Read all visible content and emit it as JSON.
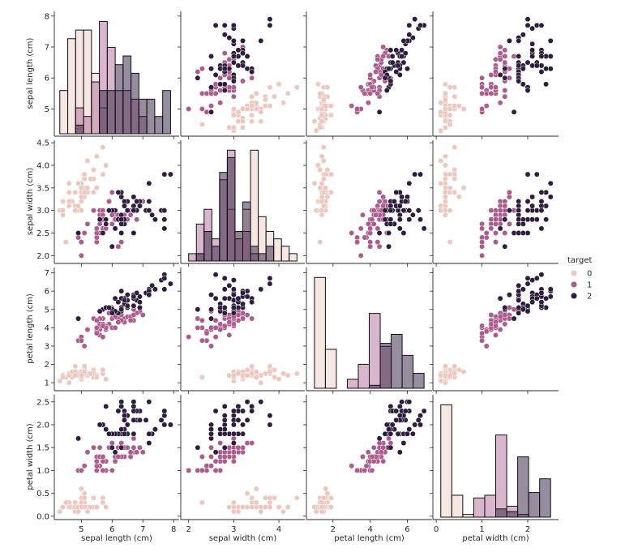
{
  "chart_data": {
    "type": "scatter",
    "subtype": "pairplot",
    "variables": [
      "sepal length (cm)",
      "sepal width (cm)",
      "petal length (cm)",
      "petal width (cm)"
    ],
    "hue": "target",
    "legend": {
      "title": "target",
      "entries": [
        "0",
        "1",
        "2"
      ],
      "placement": "right"
    },
    "palette": {
      "0": "#ebc9c0",
      "1": "#ab5d8e",
      "2": "#2d1e3e"
    },
    "axes": [
      {
        "name": "sepal length (cm)",
        "lim": [
          4.2,
          8.1
        ],
        "ticks": [
          5,
          6,
          7,
          8
        ],
        "ylim_ticks": [
          5,
          6,
          7,
          8
        ]
      },
      {
        "name": "sepal width (cm)",
        "lim": [
          1.88,
          4.52
        ],
        "ticks": [
          2,
          3,
          4
        ],
        "ylim_ticks": [
          2.0,
          2.5,
          3.0,
          3.5,
          4.0,
          4.5
        ]
      },
      {
        "name": "petal length (cm)",
        "lim": [
          0.7,
          7.2
        ],
        "ticks": [
          2,
          4,
          6
        ],
        "ylim_ticks": [
          1,
          2,
          3,
          4,
          5,
          6,
          7
        ]
      },
      {
        "name": "petal width (cm)",
        "lim": [
          -0.02,
          2.62
        ],
        "ticks": [
          0,
          1,
          2
        ],
        "ylim_ticks": [
          0.0,
          0.5,
          1.0,
          1.5,
          2.0,
          2.5
        ]
      }
    ],
    "diagonal": "histogram",
    "data": {
      "0": [
        [
          5.1,
          3.5,
          1.4,
          0.2
        ],
        [
          4.9,
          3.0,
          1.4,
          0.2
        ],
        [
          4.7,
          3.2,
          1.3,
          0.2
        ],
        [
          4.6,
          3.1,
          1.5,
          0.2
        ],
        [
          5.0,
          3.6,
          1.4,
          0.2
        ],
        [
          5.4,
          3.9,
          1.7,
          0.4
        ],
        [
          4.6,
          3.4,
          1.4,
          0.3
        ],
        [
          5.0,
          3.4,
          1.5,
          0.2
        ],
        [
          4.4,
          2.9,
          1.4,
          0.2
        ],
        [
          4.9,
          3.1,
          1.5,
          0.1
        ],
        [
          5.4,
          3.7,
          1.5,
          0.2
        ],
        [
          4.8,
          3.4,
          1.6,
          0.2
        ],
        [
          4.8,
          3.0,
          1.4,
          0.1
        ],
        [
          4.3,
          3.0,
          1.1,
          0.1
        ],
        [
          5.8,
          4.0,
          1.2,
          0.2
        ],
        [
          5.7,
          4.4,
          1.5,
          0.4
        ],
        [
          5.4,
          3.9,
          1.3,
          0.4
        ],
        [
          5.1,
          3.5,
          1.4,
          0.3
        ],
        [
          5.7,
          3.8,
          1.7,
          0.3
        ],
        [
          5.1,
          3.8,
          1.5,
          0.3
        ],
        [
          5.4,
          3.4,
          1.7,
          0.2
        ],
        [
          5.1,
          3.7,
          1.5,
          0.4
        ],
        [
          4.6,
          3.6,
          1.0,
          0.2
        ],
        [
          5.1,
          3.3,
          1.7,
          0.5
        ],
        [
          4.8,
          3.4,
          1.9,
          0.2
        ],
        [
          5.0,
          3.0,
          1.6,
          0.2
        ],
        [
          5.0,
          3.4,
          1.6,
          0.4
        ],
        [
          5.2,
          3.5,
          1.5,
          0.2
        ],
        [
          5.2,
          3.4,
          1.4,
          0.2
        ],
        [
          4.7,
          3.2,
          1.6,
          0.2
        ],
        [
          4.8,
          3.1,
          1.6,
          0.2
        ],
        [
          5.4,
          3.4,
          1.5,
          0.4
        ],
        [
          5.2,
          4.1,
          1.5,
          0.1
        ],
        [
          5.5,
          4.2,
          1.4,
          0.2
        ],
        [
          4.9,
          3.1,
          1.5,
          0.2
        ],
        [
          5.0,
          3.2,
          1.2,
          0.2
        ],
        [
          5.5,
          3.5,
          1.3,
          0.2
        ],
        [
          4.9,
          3.6,
          1.4,
          0.1
        ],
        [
          4.4,
          3.0,
          1.3,
          0.2
        ],
        [
          5.1,
          3.4,
          1.5,
          0.2
        ],
        [
          5.0,
          3.5,
          1.3,
          0.3
        ],
        [
          4.5,
          2.3,
          1.3,
          0.3
        ],
        [
          4.4,
          3.2,
          1.3,
          0.2
        ],
        [
          5.0,
          3.5,
          1.6,
          0.6
        ],
        [
          5.1,
          3.8,
          1.9,
          0.4
        ],
        [
          4.8,
          3.0,
          1.4,
          0.3
        ],
        [
          5.1,
          3.8,
          1.6,
          0.2
        ],
        [
          4.6,
          3.2,
          1.4,
          0.2
        ],
        [
          5.3,
          3.7,
          1.5,
          0.2
        ],
        [
          5.0,
          3.3,
          1.4,
          0.2
        ]
      ],
      "1": [
        [
          7.0,
          3.2,
          4.7,
          1.4
        ],
        [
          6.4,
          3.2,
          4.5,
          1.5
        ],
        [
          6.9,
          3.1,
          4.9,
          1.5
        ],
        [
          5.5,
          2.3,
          4.0,
          1.3
        ],
        [
          6.5,
          2.8,
          4.6,
          1.5
        ],
        [
          5.7,
          2.8,
          4.5,
          1.3
        ],
        [
          6.3,
          3.3,
          4.7,
          1.6
        ],
        [
          4.9,
          2.4,
          3.3,
          1.0
        ],
        [
          6.6,
          2.9,
          4.6,
          1.3
        ],
        [
          5.2,
          2.7,
          3.9,
          1.4
        ],
        [
          5.0,
          2.0,
          3.5,
          1.0
        ],
        [
          5.9,
          3.0,
          4.2,
          1.5
        ],
        [
          6.0,
          2.2,
          4.0,
          1.0
        ],
        [
          6.1,
          2.9,
          4.7,
          1.4
        ],
        [
          5.6,
          2.9,
          3.6,
          1.3
        ],
        [
          6.7,
          3.1,
          4.4,
          1.4
        ],
        [
          5.6,
          3.0,
          4.5,
          1.5
        ],
        [
          5.8,
          2.7,
          4.1,
          1.0
        ],
        [
          6.2,
          2.2,
          4.5,
          1.5
        ],
        [
          5.6,
          2.5,
          3.9,
          1.1
        ],
        [
          5.9,
          3.2,
          4.8,
          1.8
        ],
        [
          6.1,
          2.8,
          4.0,
          1.3
        ],
        [
          6.3,
          2.5,
          4.9,
          1.5
        ],
        [
          6.1,
          2.8,
          4.7,
          1.2
        ],
        [
          6.4,
          2.9,
          4.3,
          1.3
        ],
        [
          6.6,
          3.0,
          4.4,
          1.4
        ],
        [
          6.8,
          2.8,
          4.8,
          1.4
        ],
        [
          6.7,
          3.0,
          5.0,
          1.7
        ],
        [
          6.0,
          2.9,
          4.5,
          1.5
        ],
        [
          5.7,
          2.6,
          3.5,
          1.0
        ],
        [
          5.5,
          2.4,
          3.8,
          1.1
        ],
        [
          5.5,
          2.4,
          3.7,
          1.0
        ],
        [
          5.8,
          2.7,
          3.9,
          1.2
        ],
        [
          6.0,
          2.7,
          5.1,
          1.6
        ],
        [
          5.4,
          3.0,
          4.5,
          1.5
        ],
        [
          6.0,
          3.4,
          4.5,
          1.6
        ],
        [
          6.7,
          3.1,
          4.7,
          1.5
        ],
        [
          6.3,
          2.3,
          4.4,
          1.3
        ],
        [
          5.6,
          3.0,
          4.1,
          1.3
        ],
        [
          5.5,
          2.5,
          4.0,
          1.3
        ],
        [
          5.5,
          2.6,
          4.4,
          1.2
        ],
        [
          6.1,
          3.0,
          4.6,
          1.4
        ],
        [
          5.8,
          2.6,
          4.0,
          1.2
        ],
        [
          5.0,
          2.3,
          3.3,
          1.0
        ],
        [
          5.6,
          2.7,
          4.2,
          1.3
        ],
        [
          5.7,
          3.0,
          4.2,
          1.2
        ],
        [
          5.7,
          2.9,
          4.2,
          1.3
        ],
        [
          6.2,
          2.9,
          4.3,
          1.3
        ],
        [
          5.1,
          2.5,
          3.0,
          1.1
        ],
        [
          5.7,
          2.8,
          4.1,
          1.3
        ]
      ],
      "2": [
        [
          6.3,
          3.3,
          6.0,
          2.5
        ],
        [
          5.8,
          2.7,
          5.1,
          1.9
        ],
        [
          7.1,
          3.0,
          5.9,
          2.1
        ],
        [
          6.3,
          2.9,
          5.6,
          1.8
        ],
        [
          6.5,
          3.0,
          5.8,
          2.2
        ],
        [
          7.6,
          3.0,
          6.6,
          2.1
        ],
        [
          4.9,
          2.5,
          4.5,
          1.7
        ],
        [
          7.3,
          2.9,
          6.3,
          1.8
        ],
        [
          6.7,
          2.5,
          5.8,
          1.8
        ],
        [
          7.2,
          3.6,
          6.1,
          2.5
        ],
        [
          6.5,
          3.2,
          5.1,
          2.0
        ],
        [
          6.4,
          2.7,
          5.3,
          1.9
        ],
        [
          6.8,
          3.0,
          5.5,
          2.1
        ],
        [
          5.7,
          2.5,
          5.0,
          2.0
        ],
        [
          5.8,
          2.8,
          5.1,
          2.4
        ],
        [
          6.4,
          3.2,
          5.3,
          2.3
        ],
        [
          6.5,
          3.0,
          5.5,
          1.8
        ],
        [
          7.7,
          3.8,
          6.7,
          2.2
        ],
        [
          7.7,
          2.6,
          6.9,
          2.3
        ],
        [
          6.0,
          2.2,
          5.0,
          1.5
        ],
        [
          6.9,
          3.2,
          5.7,
          2.3
        ],
        [
          5.6,
          2.8,
          4.9,
          2.0
        ],
        [
          7.7,
          2.8,
          6.7,
          2.0
        ],
        [
          6.3,
          2.7,
          4.9,
          1.8
        ],
        [
          6.7,
          3.3,
          5.7,
          2.1
        ],
        [
          7.2,
          3.2,
          6.0,
          1.8
        ],
        [
          6.2,
          2.8,
          4.8,
          1.8
        ],
        [
          6.1,
          3.0,
          4.9,
          1.8
        ],
        [
          6.4,
          2.8,
          5.6,
          2.1
        ],
        [
          7.2,
          3.0,
          5.8,
          1.6
        ],
        [
          7.4,
          2.8,
          6.1,
          1.9
        ],
        [
          7.9,
          3.8,
          6.4,
          2.0
        ],
        [
          6.4,
          2.8,
          5.6,
          2.2
        ],
        [
          6.3,
          2.8,
          5.1,
          1.5
        ],
        [
          6.1,
          2.6,
          5.6,
          1.4
        ],
        [
          7.7,
          3.0,
          6.1,
          2.3
        ],
        [
          6.3,
          3.4,
          5.6,
          2.4
        ],
        [
          6.4,
          3.1,
          5.5,
          1.8
        ],
        [
          6.0,
          3.0,
          4.8,
          1.8
        ],
        [
          6.9,
          3.1,
          5.4,
          2.1
        ],
        [
          6.7,
          3.1,
          5.6,
          2.4
        ],
        [
          6.9,
          3.1,
          5.1,
          2.3
        ],
        [
          5.8,
          2.7,
          5.1,
          1.9
        ],
        [
          6.8,
          3.2,
          5.9,
          2.3
        ],
        [
          6.7,
          3.3,
          5.7,
          2.5
        ],
        [
          6.7,
          3.0,
          5.2,
          2.3
        ],
        [
          6.3,
          2.5,
          5.0,
          1.9
        ],
        [
          6.5,
          3.0,
          5.2,
          2.0
        ],
        [
          6.2,
          3.4,
          5.4,
          2.3
        ],
        [
          5.9,
          3.0,
          5.1,
          1.8
        ]
      ]
    }
  }
}
